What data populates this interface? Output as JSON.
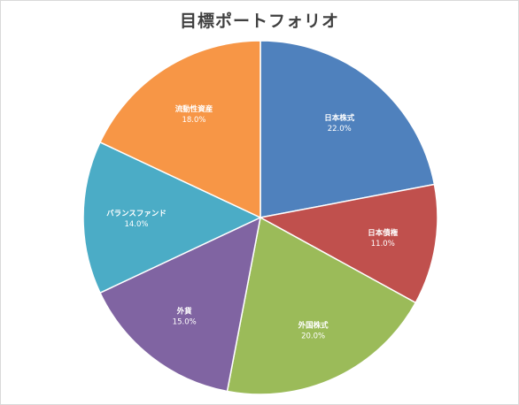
{
  "chart_data": {
    "type": "pie",
    "title": "目標ポートフォリオ",
    "categories": [
      "日本株式",
      "日本債権",
      "外国株式",
      "外貨",
      "バランスファンド",
      "流動性資産"
    ],
    "values": [
      22.0,
      11.0,
      20.0,
      15.0,
      14.0,
      18.0
    ],
    "value_labels": [
      "22.0%",
      "11.0%",
      "20.0%",
      "15.0%",
      "14.0%",
      "18.0%"
    ],
    "colors": [
      "#4f81bd",
      "#c0504d",
      "#9bbb59",
      "#8064a2",
      "#4bacc6",
      "#f79646"
    ],
    "start_angle": "12 o'clock",
    "direction": "clockwise",
    "legend": "none"
  }
}
